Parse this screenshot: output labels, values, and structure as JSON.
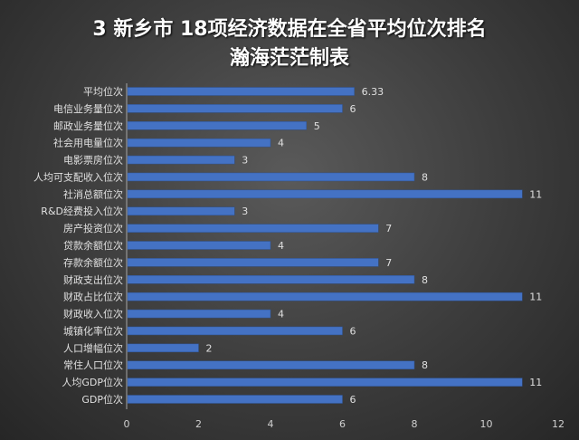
{
  "chart_data": {
    "type": "bar",
    "orientation": "horizontal",
    "title": "3 新乡市 18项经济数据在全省平均位次排名",
    "subtitle": "瀚海茫茫制表",
    "categories": [
      "平均位次",
      "电信业务量位次",
      "邮政业务量位次",
      "社会用电量位次",
      "电影票房位次",
      "人均可支配收入位次",
      "社消总额位次",
      "R&D经费投入位次",
      "房产投资位次",
      "贷款余额位次",
      "存款余额位次",
      "财政支出位次",
      "财政占比位次",
      "财政收入位次",
      "城镇化率位次",
      "人口增幅位次",
      "常住人口位次",
      "人均GDP位次",
      "GDP位次"
    ],
    "values": [
      6.33,
      6,
      5,
      4,
      3,
      8,
      11,
      3,
      7,
      4,
      7,
      8,
      11,
      4,
      6,
      2,
      8,
      11,
      6
    ],
    "xlim": [
      0,
      12
    ],
    "xticks": [
      0,
      2,
      4,
      6,
      8,
      10,
      12
    ],
    "grid": false,
    "bar_color": "#4472c4",
    "legend": "none"
  }
}
